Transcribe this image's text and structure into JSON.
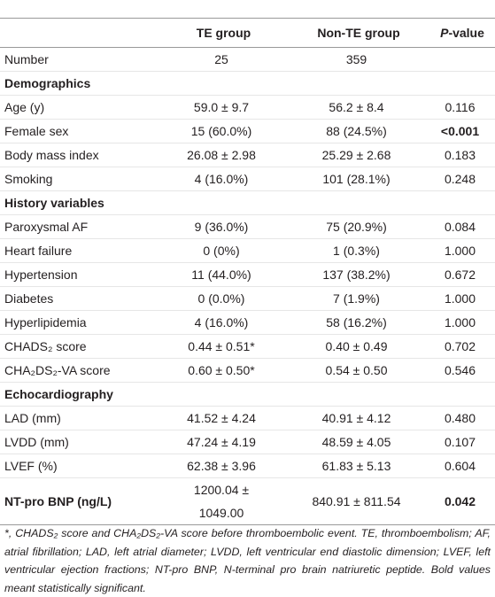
{
  "table": {
    "columns": [
      "TE group",
      "Non-TE group",
      "P-value"
    ],
    "rows": [
      [
        "Number",
        "25",
        "359"
      ],
      [
        "Demographics"
      ],
      [
        "Age (y)",
        "59.0 ± 9.7",
        "56.2 ± 8.4",
        "0.116"
      ],
      [
        "Female sex",
        "15 (60.0%)",
        "88 (24.5%)",
        "<0.001"
      ],
      [
        "Body mass index",
        "26.08 ± 2.98",
        "25.29 ± 2.68",
        "0.183"
      ],
      [
        "Smoking",
        "4 (16.0%)",
        "101 (28.1%)",
        "0.248"
      ],
      [
        "History variables"
      ],
      [
        "Paroxysmal AF",
        "9 (36.0%)",
        "75 (20.9%)",
        "0.084"
      ],
      [
        "Heart failure",
        "0 (0%)",
        "1 (0.3%)",
        "1.000"
      ],
      [
        "Hypertension",
        "11 (44.0%)",
        "137 (38.2%)",
        "0.672"
      ],
      [
        "Diabetes",
        "0 (0.0%)",
        "7 (1.9%)",
        "1.000"
      ],
      [
        "Hyperlipidemia",
        "4 (16.0%)",
        "58 (16.2%)",
        "1.000"
      ],
      [
        "CHADS₂ score",
        "0.44 ± 0.51*",
        "0.40 ± 0.49",
        "0.702"
      ],
      [
        "CHA₂DS₂-VA score",
        "0.60 ± 0.50*",
        "0.54 ± 0.50",
        "0.546"
      ],
      [
        "Echocardiography"
      ],
      [
        "LAD (mm)",
        "41.52 ± 4.24",
        "40.91 ± 4.12",
        "0.480"
      ],
      [
        "LVDD (mm)",
        "47.24 ± 4.19",
        "48.59 ± 4.05",
        "0.107"
      ],
      [
        "LVEF (%)",
        "62.38 ± 3.96",
        "61.83 ± 5.13",
        "0.604"
      ],
      [
        "NT-pro BNP (ng/L)",
        "1200.04 ± 1049.00",
        "840.91 ± 811.54",
        "0.042"
      ]
    ]
  },
  "footnote": "*, CHADS₂ score and CHA₂DS₂-VA score before thromboembolic event. TE, thromboembolism; AF, atrial fibrillation; LAD, left atrial diameter; LVDD, left ventricular end diastolic dimension; LVEF, left ventricular ejection fractions; NT-pro BNP, N-terminal pro brain natriuretic peptide. Bold values meant statistically significant."
}
